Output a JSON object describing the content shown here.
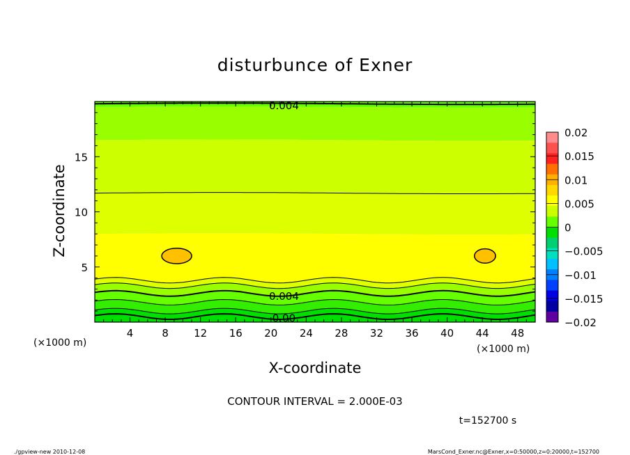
{
  "chart_data": {
    "type": "heatmap",
    "title": "disturbunce of Exner",
    "xlabel": "X-coordinate",
    "ylabel": "Z-coordinate",
    "x_unit": "(×1000 m)",
    "y_unit": "(×1000 m)",
    "xlim": [
      0,
      50
    ],
    "ylim": [
      0,
      20
    ],
    "x_ticks": [
      4,
      8,
      12,
      16,
      20,
      24,
      28,
      32,
      36,
      40,
      44,
      48
    ],
    "y_ticks": [
      5,
      10,
      15
    ],
    "colorbar": {
      "levels": [
        -0.02,
        -0.015,
        -0.01,
        -0.005,
        0,
        0.005,
        0.01,
        0.015,
        0.02
      ],
      "labels": [
        "0.02",
        "0.015",
        "0.01",
        "0.005",
        "0",
        "−0.005",
        "−0.01",
        "−0.015",
        "−0.02"
      ],
      "colors": [
        "#ff8c8c",
        "#ff5050",
        "#ff2020",
        "#ff7000",
        "#ffb000",
        "#ffd800",
        "#ffff00",
        "#ccff00",
        "#66ff00",
        "#00e000",
        "#00d070",
        "#00e0c0",
        "#00c0ff",
        "#0080ff",
        "#0040ff",
        "#0000e0",
        "#0000a0",
        "#6000a0"
      ]
    },
    "contour_labels": [
      {
        "text": "0.004",
        "x": 21,
        "z": 19.7
      },
      {
        "text": "0.004",
        "x": 21,
        "z": 2.4
      },
      {
        "text": "0.00",
        "x": 21,
        "z": 0.4
      }
    ],
    "bands": [
      {
        "z0": 19.5,
        "z1": 20.0,
        "color": "#66ff00"
      },
      {
        "z0": 16.5,
        "z1": 19.5,
        "color": "#99ff00"
      },
      {
        "z0": 11.8,
        "z1": 16.5,
        "color": "#ccff00"
      },
      {
        "z0": 8.0,
        "z1": 11.8,
        "color": "#ddff00"
      },
      {
        "z0": 3.8,
        "z1": 8.0,
        "color": "#ffff00"
      },
      {
        "z0": 3.3,
        "z1": 3.8,
        "color": "#ddff00"
      },
      {
        "z0": 2.6,
        "z1": 3.3,
        "color": "#99ff00"
      },
      {
        "z0": 1.8,
        "z1": 2.6,
        "color": "#66ff00"
      },
      {
        "z0": 1.0,
        "z1": 1.8,
        "color": "#33ee00"
      },
      {
        "z0": 0.0,
        "z1": 1.0,
        "color": "#00e000"
      }
    ],
    "contour_lines": [
      {
        "z": 11.7,
        "width": 1
      },
      {
        "z": 3.8,
        "width": 1
      },
      {
        "z": 3.3,
        "width": 1
      },
      {
        "z": 2.6,
        "width": 2
      },
      {
        "z": 1.8,
        "width": 1
      },
      {
        "z": 1.0,
        "width": 1
      },
      {
        "z": 0.5,
        "width": 2
      },
      {
        "z": 19.8,
        "width": 2
      }
    ],
    "maxima": [
      {
        "x": 9.3,
        "z": 6.0,
        "rx": 1.7,
        "rz": 0.7
      },
      {
        "x": 44.3,
        "z": 6.0,
        "rx": 1.2,
        "rz": 0.65
      }
    ]
  },
  "contour_interval": "CONTOUR INTERVAL = 2.000E-03",
  "time_label": "t=152700  s",
  "footer_left": "./gpview-new   2010-12-08",
  "footer_right": "MarsCond_Exner.nc@Exner,x=0:50000,z=0:20000,t=152700"
}
